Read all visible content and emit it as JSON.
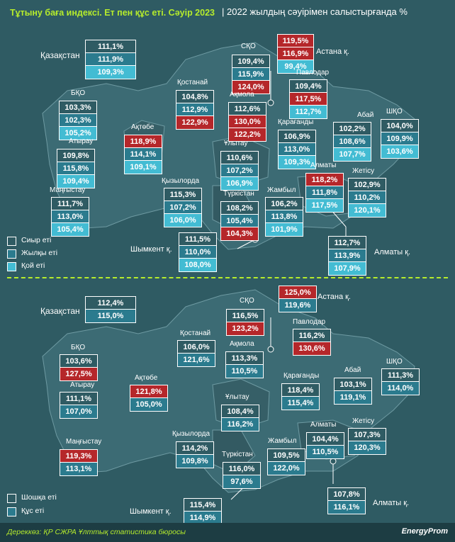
{
  "header": {
    "title": "Тұтыну баға индексі. Ет пен құс еті. Сәуір 2023",
    "subtitle": "| 2022 жылдың сәуірімен салыстырғанда %"
  },
  "colors": {
    "background": "#2f5b63",
    "accent": "#b6ec2c",
    "highlight": "#b5272a",
    "beef": "#2f5b63",
    "horse": "#2b7b8e",
    "lamb": "#43bcd3",
    "pork": "#2f5b63",
    "poultry": "#2b7b8e"
  },
  "top_map": {
    "legend": [
      "Сиыр еті",
      "Жылқы еті",
      "Қой еті"
    ],
    "country": {
      "name": "Қазақстан",
      "values": [
        "111,1%",
        "111,9%",
        "109,3%"
      ]
    },
    "regions": [
      {
        "id": "sko",
        "name": "СҚО",
        "values": [
          "109,4%",
          "115,9%",
          "124,0%"
        ],
        "highlight": [
          2
        ]
      },
      {
        "id": "astana",
        "name": "Астана қ.",
        "values": [
          "119,5%",
          "116,9%",
          "99,4%"
        ],
        "highlight": [
          0,
          1
        ]
      },
      {
        "id": "kostanay",
        "name": "Қостанай",
        "values": [
          "104,8%",
          "112,9%",
          "122,9%"
        ],
        "highlight": [
          2
        ]
      },
      {
        "id": "akmola",
        "name": "Ақмола",
        "values": [
          "112,6%",
          "130,0%",
          "122,2%"
        ],
        "highlight": [
          1,
          2
        ]
      },
      {
        "id": "pavlodar",
        "name": "Павлодар",
        "values": [
          "109,4%",
          "117,5%",
          "112,7%"
        ],
        "highlight": [
          1
        ]
      },
      {
        "id": "bko",
        "name": "БҚО",
        "values": [
          "103,3%",
          "102,3%",
          "105,2%"
        ],
        "highlight": []
      },
      {
        "id": "aktobe",
        "name": "Ақтөбе",
        "values": [
          "118,9%",
          "114,1%",
          "109,1%"
        ],
        "highlight": [
          0
        ]
      },
      {
        "id": "karaganda",
        "name": "Қарағанды",
        "values": [
          "106,9%",
          "113,0%",
          "109,3%"
        ],
        "highlight": []
      },
      {
        "id": "abay",
        "name": "Абай",
        "values": [
          "102,2%",
          "108,6%",
          "107,7%"
        ],
        "highlight": []
      },
      {
        "id": "shko",
        "name": "ШҚО",
        "values": [
          "104,0%",
          "109,9%",
          "103,6%"
        ],
        "highlight": []
      },
      {
        "id": "atyrau",
        "name": "Атырау",
        "values": [
          "109,8%",
          "115,8%",
          "109,4%"
        ],
        "highlight": []
      },
      {
        "id": "ulytau",
        "name": "Ұлытау",
        "values": [
          "110,6%",
          "107,2%",
          "106,9%"
        ],
        "highlight": []
      },
      {
        "id": "almaty_reg",
        "name": "Алматы",
        "values": [
          "118,2%",
          "111,8%",
          "117,5%"
        ],
        "highlight": [
          0
        ]
      },
      {
        "id": "zhetisu",
        "name": "Жетісу",
        "values": [
          "102,9%",
          "110,2%",
          "120,1%"
        ],
        "highlight": []
      },
      {
        "id": "mangystau",
        "name": "Маңғыстау",
        "values": [
          "111,7%",
          "113,0%",
          "105,4%"
        ],
        "highlight": []
      },
      {
        "id": "kyzylorda",
        "name": "Қызылорда",
        "values": [
          "115,3%",
          "107,2%",
          "106,0%"
        ],
        "highlight": []
      },
      {
        "id": "turkistan",
        "name": "Түркістан",
        "values": [
          "108,2%",
          "105,4%",
          "104,3%"
        ],
        "highlight": [
          2
        ]
      },
      {
        "id": "zhambyl",
        "name": "Жамбыл",
        "values": [
          "106,2%",
          "113,8%",
          "101,9%"
        ],
        "highlight": []
      },
      {
        "id": "shymkent",
        "name": "Шымкент қ.",
        "values": [
          "111,5%",
          "110,0%",
          "108,0%"
        ],
        "highlight": []
      },
      {
        "id": "almaty_city",
        "name": "Алматы қ.",
        "values": [
          "112,7%",
          "113,9%",
          "107,9%"
        ],
        "highlight": []
      }
    ]
  },
  "bottom_map": {
    "legend": [
      "Шошқа еті",
      "Құс еті"
    ],
    "country": {
      "name": "Қазақстан",
      "values": [
        "112,4%",
        "115,0%"
      ]
    },
    "regions": [
      {
        "id": "astana",
        "name": "Астана қ.",
        "values": [
          "125,0%",
          "119,6%"
        ],
        "highlight": [
          0
        ]
      },
      {
        "id": "sko",
        "name": "СҚО",
        "values": [
          "116,5%",
          "123,2%"
        ],
        "highlight": [
          1
        ]
      },
      {
        "id": "pavlodar",
        "name": "Павлодар",
        "values": [
          "116,2%",
          "130,6%"
        ],
        "highlight": [
          1
        ]
      },
      {
        "id": "kostanay",
        "name": "Қостанай",
        "values": [
          "106,0%",
          "121,6%"
        ],
        "highlight": []
      },
      {
        "id": "bko",
        "name": "БҚО",
        "values": [
          "103,6%",
          "127,5%"
        ],
        "highlight": [
          1
        ]
      },
      {
        "id": "akmola",
        "name": "Ақмола",
        "values": [
          "113,3%",
          "110,5%"
        ],
        "highlight": []
      },
      {
        "id": "karaganda",
        "name": "Қарағанды",
        "values": [
          "118,4%",
          "115,4%"
        ],
        "highlight": []
      },
      {
        "id": "aktobe",
        "name": "Ақтөбе",
        "values": [
          "121,8%",
          "105,0%"
        ],
        "highlight": [
          0
        ]
      },
      {
        "id": "abay",
        "name": "Абай",
        "values": [
          "103,1%",
          "119,1%"
        ],
        "highlight": []
      },
      {
        "id": "shko",
        "name": "ШҚО",
        "values": [
          "111,3%",
          "114,0%"
        ],
        "highlight": []
      },
      {
        "id": "atyrau",
        "name": "Атырау",
        "values": [
          "111,1%",
          "107,0%"
        ],
        "highlight": []
      },
      {
        "id": "ulytau",
        "name": "Ұлытау",
        "values": [
          "108,4%",
          "116,2%"
        ],
        "highlight": []
      },
      {
        "id": "mangystau",
        "name": "Маңғыстау",
        "values": [
          "119,3%",
          "113,1%"
        ],
        "highlight": [
          0
        ]
      },
      {
        "id": "kyzylorda",
        "name": "Қызылорда",
        "values": [
          "114,2%",
          "109,8%"
        ],
        "highlight": []
      },
      {
        "id": "almaty_reg",
        "name": "Алматы",
        "values": [
          "104,4%",
          "110,5%"
        ],
        "highlight": []
      },
      {
        "id": "zhetisu",
        "name": "Жетісу",
        "values": [
          "107,3%",
          "120,3%"
        ],
        "highlight": []
      },
      {
        "id": "zhambyl",
        "name": "Жамбыл",
        "values": [
          "109,5%",
          "122,0%"
        ],
        "highlight": []
      },
      {
        "id": "turkistan",
        "name": "Түркістан",
        "values": [
          "116,0%",
          "97,6%"
        ],
        "highlight": []
      },
      {
        "id": "shymkent",
        "name": "Шымкент қ.",
        "values": [
          "115,4%",
          "114,9%"
        ],
        "highlight": []
      },
      {
        "id": "almaty_city",
        "name": "Алматы қ.",
        "values": [
          "107,8%",
          "116,1%"
        ],
        "highlight": []
      }
    ]
  },
  "footer": {
    "source": "Дереккөз: ҚР СЖРА Ұлттық статистика бюросы",
    "brand": "EnergyProm"
  }
}
